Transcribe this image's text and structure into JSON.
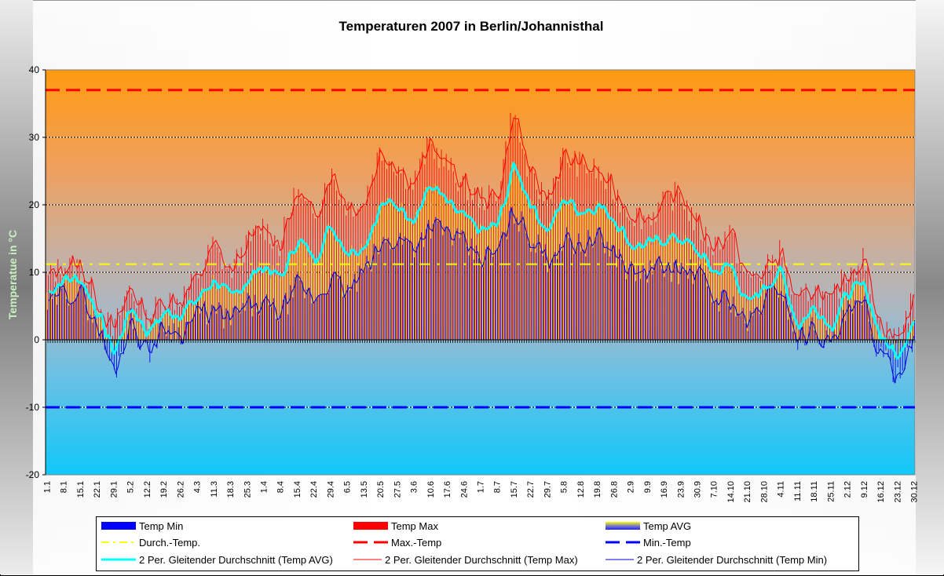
{
  "chart_data": {
    "type": "bar",
    "title": "Temperaturen 2007 in Berlin/Johannisthal",
    "xlabel": "",
    "ylabel": "Temperatue in °C",
    "ylim": [
      -20,
      40
    ],
    "yticks": [
      "40",
      "30",
      "20",
      "10",
      "0",
      "-10",
      "-20"
    ],
    "ytick_values": [
      40,
      30,
      20,
      10,
      0,
      -10,
      -20
    ],
    "grid": true,
    "legend_position": "bottom",
    "x_tick_labels": [
      "1.1",
      "8.1",
      "15.1",
      "22.1",
      "29.1",
      "5.2",
      "12.2",
      "19.2",
      "26.2",
      "4.3",
      "11.3",
      "18.3",
      "25.3",
      "1.4",
      "8.4",
      "15.4",
      "22.4",
      "29.4",
      "6.5",
      "13.5",
      "20.5",
      "27.5",
      "3.6",
      "10.6",
      "17.6",
      "24.6",
      "1.7",
      "8.7",
      "15.7",
      "22.7",
      "29.7",
      "5.8",
      "12.8",
      "19.8",
      "26.8",
      "2.9",
      "9.9",
      "16.9",
      "23.9",
      "30.9",
      "7.10",
      "14.10",
      "21.10",
      "28.10",
      "4.11",
      "11.11",
      "18.11",
      "25.11",
      "2.12",
      "9.12",
      "16.12",
      "23.12",
      "30.12"
    ],
    "days_in_year": 365,
    "weekly_step_days": 7,
    "series": [
      {
        "name": "Temp AVG",
        "values": [
          7,
          9,
          9,
          4,
          -2,
          5,
          1,
          4,
          4,
          6,
          9,
          6,
          9,
          11,
          9,
          15,
          12,
          17,
          13,
          14,
          20,
          20,
          18,
          23,
          20,
          18,
          16,
          17,
          26,
          20,
          16,
          21,
          19,
          20,
          18,
          14,
          14,
          15,
          15,
          13,
          10,
          11,
          5,
          8,
          10,
          2,
          5,
          2,
          7,
          8,
          0,
          -2,
          3
        ]
      },
      {
        "name": "Temp Max",
        "values": [
          9,
          11,
          11,
          6,
          1,
          8,
          3,
          6,
          6,
          9,
          14,
          10,
          14,
          17,
          14,
          22,
          18,
          25,
          20,
          20,
          28,
          26,
          23,
          29,
          26,
          23,
          21,
          21,
          34,
          24,
          21,
          27,
          26,
          25,
          22,
          19,
          18,
          20,
          22,
          17,
          14,
          16,
          9,
          10,
          13,
          5,
          8,
          5,
          10,
          12,
          2,
          0,
          6
        ]
      },
      {
        "name": "Temp Min",
        "values": [
          5,
          7,
          7,
          2,
          -5,
          3,
          -2,
          2,
          1,
          4,
          4,
          3,
          5,
          5,
          4,
          8,
          6,
          9,
          7,
          10,
          14,
          15,
          14,
          17,
          16,
          14,
          12,
          13,
          19,
          15,
          12,
          15,
          14,
          15,
          13,
          10,
          10,
          11,
          10,
          10,
          6,
          6,
          2,
          6,
          8,
          0,
          2,
          -1,
          4,
          5,
          -3,
          -5,
          1
        ]
      }
    ],
    "reference_lines": [
      {
        "name": "Durch.-Temp.",
        "value": 11.2,
        "color": "#ffff00"
      },
      {
        "name": "Max.-Temp",
        "value": 37,
        "color": "#ff0000"
      },
      {
        "name": "Min.-Temp",
        "value": -10,
        "color": "#0000ff"
      }
    ],
    "colors": {
      "temp_min": "#0000ff",
      "temp_max": "#ff0000",
      "temp_avg": "#ffff00",
      "ma_avg": "#00ffff",
      "ma_max": "#ff0000",
      "ma_min": "#0000cc",
      "plot_top": "#ff9a10",
      "plot_mid": "#a8b8c0",
      "plot_bottom": "#10c8f8"
    }
  },
  "legend": {
    "items": [
      {
        "label": "Temp Min"
      },
      {
        "label": "Temp Max"
      },
      {
        "label": "Temp AVG"
      },
      {
        "label": "Durch.-Temp."
      },
      {
        "label": "Max.-Temp"
      },
      {
        "label": "Min.-Temp"
      },
      {
        "label": "2 Per. Gleitender Durchschnitt (Temp AVG)"
      },
      {
        "label": "2 Per. Gleitender Durchschnitt (Temp Max)"
      },
      {
        "label": "2 Per. Gleitender Durchschnitt (Temp Min)"
      }
    ]
  }
}
